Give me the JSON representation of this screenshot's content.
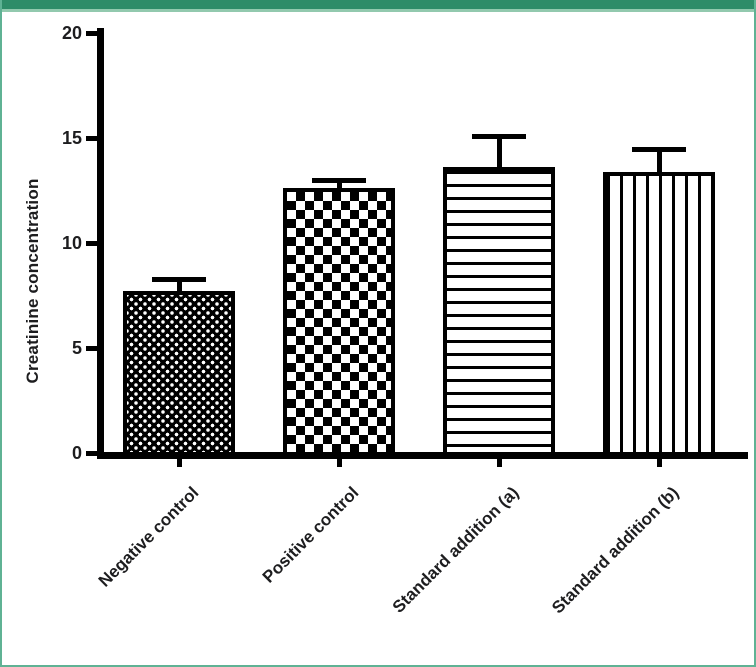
{
  "figure": {
    "top_bar_color": "#2E8C68",
    "top_bar_accent_color": "#92C9AE",
    "frame_border_color": "#5FB294",
    "background_color": "#FFFFFF",
    "text_color": "#1D1D1F",
    "axis_color": "#000000"
  },
  "chart_data": {
    "type": "bar",
    "title": "",
    "xlabel": "",
    "ylabel": "Creatinine concentration",
    "categories": [
      "Negative control",
      "Positive control",
      "Standard addition (a)",
      "Standard addition (b)"
    ],
    "values": [
      7.7,
      12.6,
      13.6,
      13.4
    ],
    "errors_plus": [
      0.6,
      0.4,
      1.5,
      1.1
    ],
    "ylim": [
      0,
      20
    ],
    "yticks": [
      0,
      5,
      10,
      15,
      20
    ],
    "grid": false,
    "legend": null,
    "bar_fill_patterns": [
      "fine-checkerboard",
      "coarse-checkerboard",
      "horizontal-lines",
      "vertical-lines"
    ],
    "bar_outline_color": "#000000",
    "xtick_label_rotation_deg": 45
  }
}
